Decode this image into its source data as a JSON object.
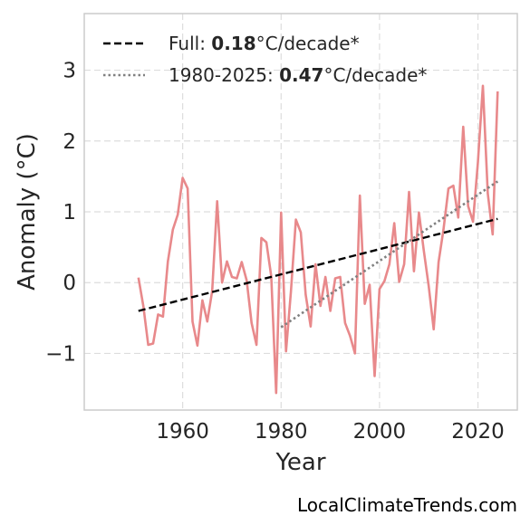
{
  "chart_data": {
    "type": "line",
    "xlabel": "Year",
    "ylabel": "Anomaly (°C)",
    "xlim": [
      1940,
      2028
    ],
    "ylim": [
      -1.8,
      3.8
    ],
    "xticks": [
      1960,
      1980,
      2000,
      2020
    ],
    "yticks": [
      -1,
      0,
      1,
      2,
      3
    ],
    "ytick_labels": [
      "−1",
      "0",
      "1",
      "2",
      "3"
    ],
    "grid": true,
    "legend_placement": "upper-left",
    "series": [
      {
        "color": "#e8898b",
        "x": [
          1951,
          1952,
          1953,
          1954,
          1955,
          1956,
          1957,
          1958,
          1959,
          1960,
          1961,
          1962,
          1963,
          1964,
          1965,
          1966,
          1967,
          1968,
          1969,
          1970,
          1971,
          1972,
          1973,
          1974,
          1975,
          1976,
          1977,
          1978,
          1979,
          1980,
          1981,
          1982,
          1983,
          1984,
          1985,
          1986,
          1987,
          1988,
          1989,
          1990,
          1991,
          1992,
          1993,
          1994,
          1995,
          1996,
          1997,
          1998,
          1999,
          2000,
          2001,
          2002,
          2003,
          2004,
          2005,
          2006,
          2007,
          2008,
          2009,
          2010,
          2011,
          2012,
          2013,
          2014,
          2015,
          2016,
          2017,
          2018,
          2019,
          2020,
          2021,
          2022,
          2023,
          2024
        ],
        "values": [
          0.07,
          -0.33,
          -0.88,
          -0.86,
          -0.45,
          -0.48,
          0.3,
          0.75,
          0.96,
          1.48,
          1.33,
          -0.55,
          -0.89,
          -0.25,
          -0.55,
          -0.12,
          1.15,
          0.0,
          0.3,
          0.08,
          0.06,
          0.29,
          0.03,
          -0.57,
          -0.88,
          0.63,
          0.57,
          0.09,
          -1.56,
          0.99,
          -0.97,
          -0.13,
          0.89,
          0.71,
          -0.17,
          -0.62,
          0.26,
          -0.33,
          0.08,
          -0.4,
          0.06,
          0.08,
          -0.57,
          -0.75,
          -1.0,
          1.23,
          -0.3,
          -0.03,
          -1.32,
          -0.09,
          0.02,
          0.26,
          0.84,
          0.01,
          0.26,
          1.28,
          0.16,
          0.99,
          0.45,
          -0.05,
          -0.66,
          0.29,
          0.75,
          1.33,
          1.37,
          0.92,
          2.2,
          1.08,
          0.86,
          1.7,
          2.78,
          1.26,
          0.68,
          2.7
        ]
      },
      {
        "name": "Full",
        "color": "#000000",
        "style": "dashed",
        "x": [
          1951,
          2024
        ],
        "values": [
          -0.4,
          0.9
        ]
      },
      {
        "name": "1980-2025",
        "color": "#808080",
        "style": "dotted",
        "x": [
          1980,
          2024
        ],
        "values": [
          -0.63,
          1.43
        ]
      }
    ],
    "legend": [
      {
        "prefix": "Full: ",
        "value": "0.18",
        "suffix": "°C/decade*",
        "style": "dashed",
        "color": "#000000"
      },
      {
        "prefix": "1980-2025: ",
        "value": "0.47",
        "suffix": "°C/decade*",
        "style": "dotted",
        "color": "#808080"
      }
    ]
  },
  "credit": "LocalClimateTrends.com"
}
